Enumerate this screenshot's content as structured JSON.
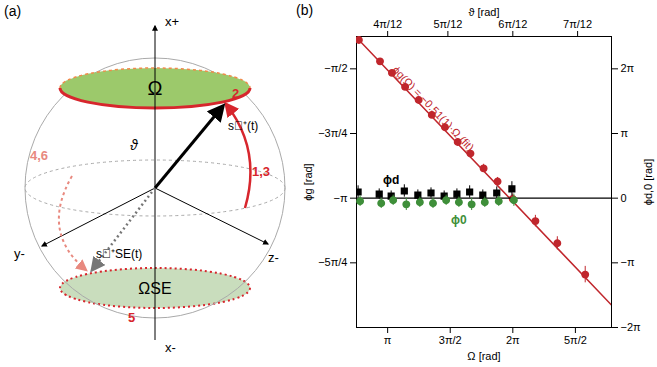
{
  "diagram": {
    "title": "(a)",
    "axis_labels": [
      "x+",
      "x-",
      "y-",
      "z-"
    ],
    "caps": [
      "Ω",
      "ΩSE"
    ],
    "vectors": [
      "s⃗⁺(t)",
      "s⃗⁺SE(t)"
    ],
    "angle": "ϑ",
    "path_labels": [
      "1,3",
      "2",
      "4,6",
      "5"
    ]
  },
  "chart_data": {
    "type": "scatter",
    "title": "(b)",
    "x_label": "Ω [rad]",
    "x2_label": "ϑ [rad]",
    "y_label": "ϕg [rad]",
    "y2_label": "ϕd,0 [rad]",
    "xlim": [
      2.36,
      8.76
    ],
    "xticks": [
      {
        "value": 3.1416,
        "label": "π"
      },
      {
        "value": 4.7124,
        "label": "3π/2"
      },
      {
        "value": 6.2832,
        "label": "2π"
      },
      {
        "value": 7.854,
        "label": "5π/2"
      }
    ],
    "x2ticks": [
      {
        "value": 3.1416,
        "label": "4π/12"
      },
      {
        "value": 4.6535,
        "label": "5π/12"
      },
      {
        "value": 6.2832,
        "label": "6π/12"
      },
      {
        "value": 7.9094,
        "label": "7π/12"
      }
    ],
    "ylim": [
      -4.7124,
      -1.178
    ],
    "yticks": [
      {
        "value": -1.5708,
        "label": "−π/2"
      },
      {
        "value": -2.3562,
        "label": "−3π/4"
      },
      {
        "value": -3.1416,
        "label": "−π"
      },
      {
        "value": -3.927,
        "label": "−5π/4"
      }
    ],
    "y2lim": [
      -6.2832,
      7.854
    ],
    "y2ticks": [
      {
        "value": 6.2832,
        "label": "2π"
      },
      {
        "value": 3.1416,
        "label": "π"
      },
      0,
      {
        "value": -3.1416,
        "label": "−π"
      },
      {
        "value": -6.2832,
        "label": "−2π"
      }
    ],
    "reference_line": {
      "axis": "y2",
      "value": 0,
      "color": "#000000"
    },
    "series": [
      {
        "type": "scatter",
        "marker": "circle",
        "color": "#c0272d",
        "x": [
          2.42,
          2.95,
          3.25,
          3.58,
          3.92,
          4.25,
          4.58,
          4.9,
          5.22,
          5.55,
          5.9,
          6.28,
          6.85,
          7.4,
          8.1
        ],
        "values": [
          -1.22,
          -1.48,
          -1.62,
          -1.79,
          -1.95,
          -2.13,
          -2.28,
          -2.46,
          -2.6,
          -2.78,
          -2.94,
          -3.15,
          -3.42,
          -3.69,
          -4.07
        ],
        "errors": [
          0.03,
          0.03,
          0.03,
          0.03,
          0.04,
          0.04,
          0.04,
          0.04,
          0.04,
          0.05,
          0.05,
          0.06,
          0.07,
          0.08,
          0.1
        ]
      },
      {
        "name": "ϕg(Ω) = −0.51(1)·Ω (fit)",
        "type": "line",
        "color": "#c0272d",
        "x": [
          2.36,
          8.76
        ],
        "values": [
          -1.19,
          -4.44
        ]
      },
      {
        "name": "ϕd",
        "type": "scatter",
        "marker": "square",
        "color": "#000000",
        "axis": "y2",
        "x": [
          2.4,
          2.93,
          3.23,
          3.56,
          3.9,
          4.23,
          4.56,
          4.88,
          5.2,
          5.53,
          5.88,
          6.26
        ],
        "values": [
          0.3,
          0.2,
          0.1,
          0.35,
          0.15,
          0.25,
          0.1,
          0.2,
          0.3,
          0.15,
          0.25,
          0.45
        ],
        "errors": [
          0.3,
          0.25,
          0.25,
          0.3,
          0.25,
          0.25,
          0.25,
          0.25,
          0.3,
          0.25,
          0.3,
          0.35
        ]
      },
      {
        "name": "ϕ0",
        "type": "scatter",
        "marker": "circle",
        "color": "#3f8f3a",
        "axis": "y2",
        "x": [
          2.45,
          2.98,
          3.28,
          3.61,
          3.95,
          4.28,
          4.61,
          4.93,
          5.25,
          5.58,
          5.93,
          6.31
        ],
        "values": [
          -0.15,
          -0.25,
          -0.1,
          -0.3,
          -0.2,
          -0.25,
          -0.1,
          -0.2,
          -0.3,
          -0.2,
          -0.15,
          -0.1
        ],
        "errors": [
          0.25,
          0.25,
          0.25,
          0.3,
          0.25,
          0.25,
          0.25,
          0.25,
          0.3,
          0.25,
          0.25,
          0.3
        ]
      }
    ]
  }
}
